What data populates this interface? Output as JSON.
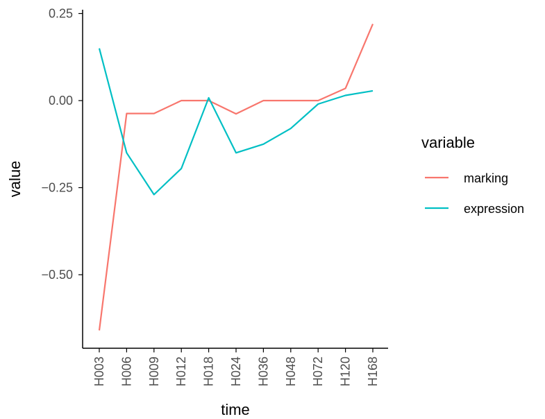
{
  "chart_data": {
    "type": "line",
    "xlabel": "time",
    "ylabel": "value",
    "categories": [
      "H003",
      "H006",
      "H009",
      "H012",
      "H018",
      "H024",
      "H036",
      "H048",
      "H072",
      "H120",
      "H168"
    ],
    "ylim": [
      -0.7,
      0.26
    ],
    "yticks": [
      0.25,
      0.0,
      -0.25,
      -0.5
    ],
    "ytick_labels": [
      "0.25",
      "0.00",
      "−0.25",
      "−0.50"
    ],
    "grid": false,
    "legend": {
      "title": "variable",
      "position": "right"
    },
    "series": [
      {
        "name": "marking",
        "color": "#F8766D",
        "values": [
          -0.66,
          -0.037,
          -0.037,
          0.0,
          0.0,
          -0.038,
          0.0,
          0.0,
          0.0,
          0.035,
          0.22
        ]
      },
      {
        "name": "expression",
        "color": "#00BFC4",
        "values": [
          0.15,
          -0.15,
          -0.27,
          -0.195,
          0.008,
          -0.15,
          -0.125,
          -0.08,
          -0.01,
          0.015,
          0.028
        ]
      }
    ]
  }
}
